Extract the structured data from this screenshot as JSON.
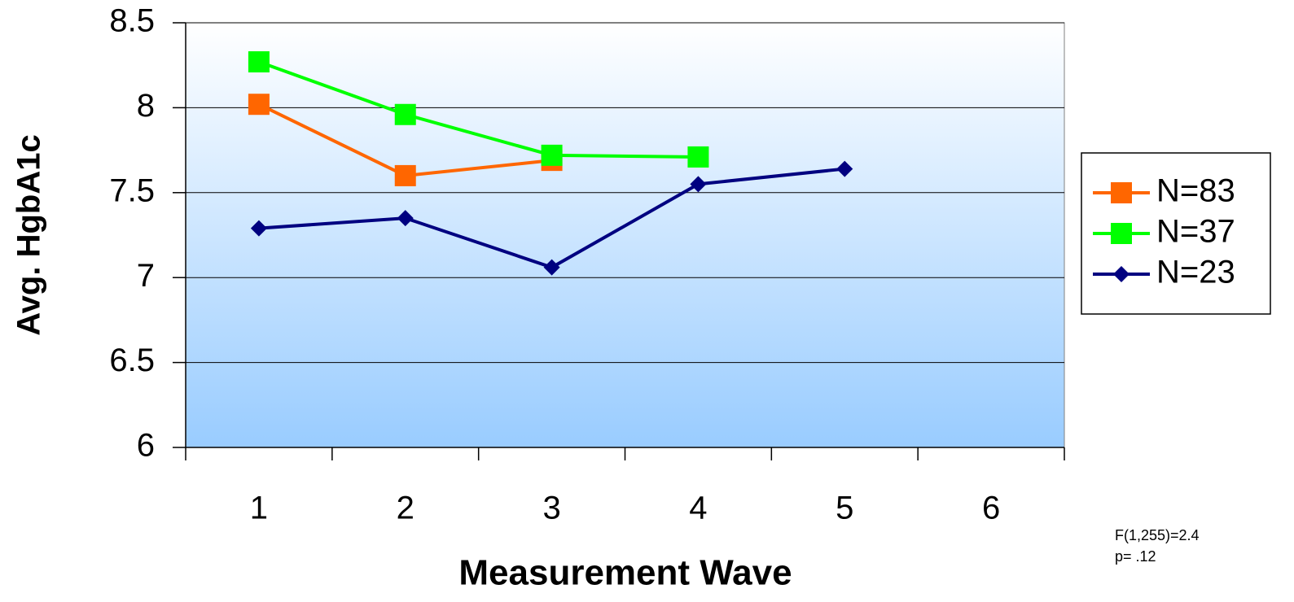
{
  "chart_data": {
    "type": "line",
    "categories": [
      "1",
      "2",
      "3",
      "4",
      "5",
      "6"
    ],
    "series": [
      {
        "name": "N=83",
        "color": "#ff6600",
        "marker": "square",
        "values": [
          8.02,
          7.6,
          7.69,
          null,
          null,
          null
        ]
      },
      {
        "name": "N=37",
        "color": "#00ff00",
        "marker": "square",
        "values": [
          8.27,
          7.96,
          7.72,
          7.71,
          null,
          null
        ]
      },
      {
        "name": "N=23",
        "color": "#000080",
        "marker": "diamond",
        "values": [
          7.29,
          7.35,
          7.06,
          7.55,
          7.64,
          null
        ]
      }
    ],
    "xlabel": "Measurement Wave",
    "ylabel": "Avg. HgbA1c",
    "ylim": [
      6,
      8.5
    ],
    "yticks": [
      6,
      6.5,
      7,
      7.5,
      8,
      8.5
    ],
    "grid": true,
    "legend": "right",
    "annotations": [
      "F(1,255)=2.4",
      "p= .12"
    ]
  }
}
